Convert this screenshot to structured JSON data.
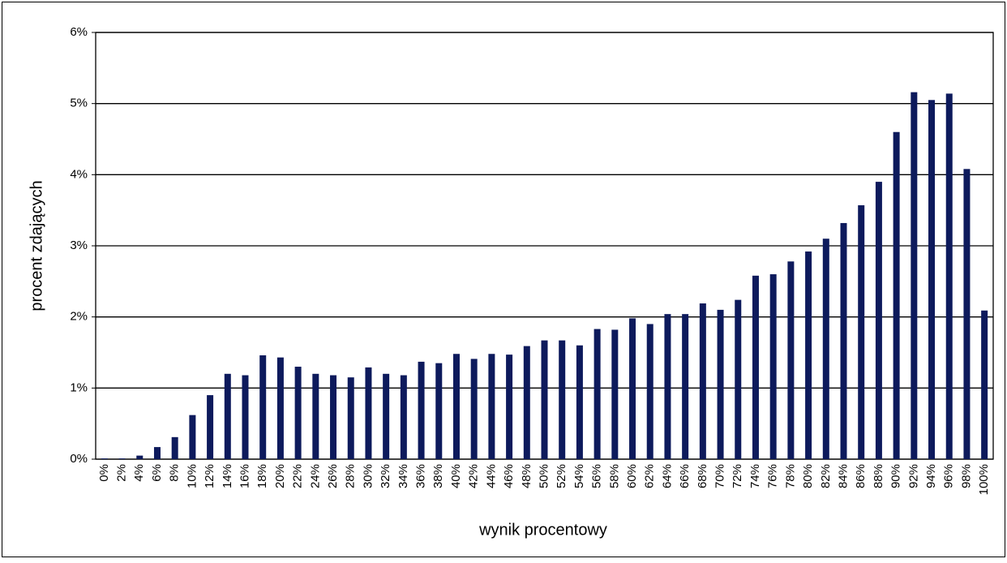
{
  "chart_data": {
    "type": "bar",
    "x_label": "wynik procentowy",
    "y_label": "procent zdających",
    "categories": [
      "0%",
      "2%",
      "4%",
      "6%",
      "8%",
      "10%",
      "12%",
      "14%",
      "16%",
      "18%",
      "20%",
      "22%",
      "24%",
      "26%",
      "28%",
      "30%",
      "32%",
      "34%",
      "36%",
      "38%",
      "40%",
      "42%",
      "44%",
      "46%",
      "48%",
      "50%",
      "52%",
      "54%",
      "56%",
      "58%",
      "60%",
      "62%",
      "64%",
      "66%",
      "68%",
      "70%",
      "72%",
      "74%",
      "76%",
      "78%",
      "80%",
      "82%",
      "84%",
      "86%",
      "88%",
      "90%",
      "92%",
      "94%",
      "96%",
      "98%",
      "100%"
    ],
    "values": [
      0.01,
      0.01,
      0.05,
      0.17,
      0.31,
      0.62,
      0.9,
      1.2,
      1.18,
      1.46,
      1.43,
      1.3,
      1.2,
      1.18,
      1.15,
      1.29,
      1.2,
      1.18,
      1.37,
      1.35,
      1.48,
      1.41,
      1.48,
      1.47,
      1.59,
      1.67,
      1.67,
      1.6,
      1.83,
      1.82,
      1.98,
      1.9,
      2.04,
      2.04,
      2.19,
      2.1,
      2.24,
      2.58,
      2.6,
      2.78,
      2.92,
      3.1,
      3.32,
      3.57,
      3.9,
      4.6,
      5.16,
      5.05,
      5.14,
      4.08,
      2.09
    ],
    "color": "#0d1a5c",
    "ylim": [
      0,
      6
    ],
    "yticks": [
      {
        "value": 0,
        "label": "0%"
      },
      {
        "value": 1,
        "label": "1%"
      },
      {
        "value": 2,
        "label": "2%"
      },
      {
        "value": 3,
        "label": "3%"
      },
      {
        "value": 4,
        "label": "4%"
      },
      {
        "value": 5,
        "label": "5%"
      },
      {
        "value": 6,
        "label": "6%"
      }
    ],
    "grid": true
  }
}
